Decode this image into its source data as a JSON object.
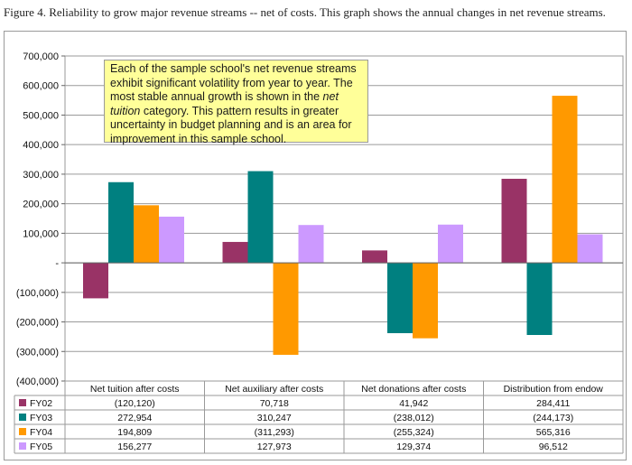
{
  "caption": "Figure 4. Reliability to grow major revenue streams -- net of costs. This graph shows the annual changes in net revenue streams.",
  "annotation": {
    "part1": "Each of the sample school's net revenue streams exhibit significant volatility from year to year. The most stable annual growth is shown in the ",
    "emphasis": "net tuition",
    "part2": " category. This pattern results in greater uncertainty in budget planning and is an area for improvement in this sample school."
  },
  "chart_data": {
    "type": "bar",
    "title": "",
    "xlabel": "",
    "ylabel": "",
    "ylim": [
      -400000,
      700000
    ],
    "yticks": [
      700000,
      600000,
      500000,
      400000,
      300000,
      200000,
      100000,
      0,
      -100000,
      -200000,
      -300000,
      -400000
    ],
    "ytick_labels": [
      "700,000",
      "600,000",
      "500,000",
      "400,000",
      "300,000",
      "200,000",
      "100,000",
      "-",
      "(100,000)",
      "(200,000)",
      "(300,000)",
      "(400,000)"
    ],
    "grid": true,
    "legend": "data-table",
    "categories": [
      "Net tuition after costs",
      "Net auxiliary after costs",
      "Net donations after costs",
      "Distribution from endow"
    ],
    "series": [
      {
        "name": "FY02",
        "color": "#993366",
        "values": [
          -120120,
          70718,
          41942,
          284411
        ],
        "labels": [
          "(120,120)",
          "70,718",
          "41,942",
          "284,411"
        ]
      },
      {
        "name": "FY03",
        "color": "#008080",
        "values": [
          272954,
          310247,
          -238012,
          -244173
        ],
        "labels": [
          "272,954",
          "310,247",
          "(238,012)",
          "(244,173)"
        ]
      },
      {
        "name": "FY04",
        "color": "#ff9900",
        "values": [
          194809,
          -311293,
          -255324,
          565316
        ],
        "labels": [
          "194,809",
          "(311,293)",
          "(255,324)",
          "565,316"
        ]
      },
      {
        "name": "FY05",
        "color": "#cc99ff",
        "values": [
          156277,
          127973,
          129374,
          96512
        ],
        "labels": [
          "156,277",
          "127,973",
          "129,374",
          "96,512"
        ]
      }
    ]
  }
}
